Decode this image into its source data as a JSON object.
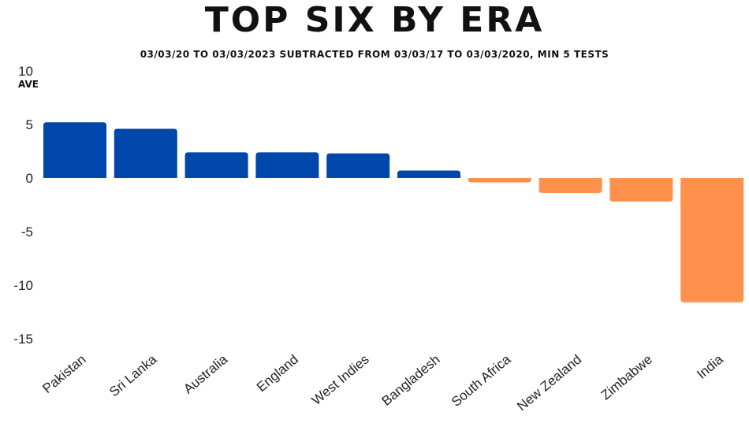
{
  "chart_data": {
    "type": "bar",
    "title": "TOP SIX BY ERA",
    "subtitle": "03/03/20 TO 03/03/2023 SUBTRACTED FROM 03/03/17 TO 03/03/2020, MIN 5 TESTS",
    "xlabel": "",
    "ylabel": "AVE",
    "ylim": [
      -15,
      10
    ],
    "yticks": [
      10,
      5,
      0,
      -5,
      -10,
      -15
    ],
    "categories": [
      "Pakistan",
      "Sri Lanka",
      "Australia",
      "England",
      "West Indies",
      "Bangladesh",
      "South Africa",
      "New Zealand",
      "Zimbabwe",
      "India"
    ],
    "values": [
      5.2,
      4.6,
      2.4,
      2.4,
      2.3,
      0.7,
      -0.4,
      -1.4,
      -2.2,
      -11.6
    ],
    "grid": false,
    "legend": "none",
    "colors": {
      "positive": "#0047AB",
      "negative": "#FF914D"
    }
  }
}
